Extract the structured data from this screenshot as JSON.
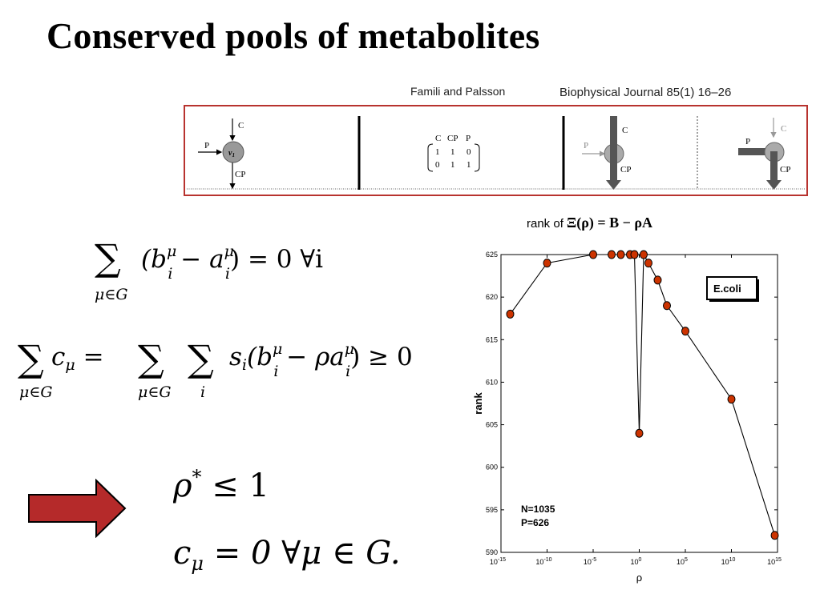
{
  "slide": {
    "title": "Conserved pools of metabolites",
    "citation": {
      "authors": "Famili and Palsson",
      "journal": "Biophysical Journal 85(1) 16–26"
    }
  },
  "figure_strip": {
    "panel1": {
      "c": "C",
      "p": "P",
      "cp": "CP",
      "node": "v",
      "node_sub": "1"
    },
    "panel2": {
      "headers": [
        "C",
        "CP",
        "P"
      ],
      "rows": [
        [
          "1",
          "1",
          "0"
        ],
        [
          "0",
          "1",
          "1"
        ]
      ]
    },
    "panel3": {
      "c": "C",
      "p": "P",
      "cp": "CP"
    },
    "panel4": {
      "c": "C",
      "p": "P",
      "cp": "CP"
    }
  },
  "equations": {
    "eq1": {
      "sum": "∑",
      "sub": "μ∈G",
      "body": "(b",
      "b_sup": "μ",
      "b_sub": "i",
      "minus": " − a",
      "a_sup": "μ",
      "a_sub": "i",
      "tail": ") = 0   ∀i"
    },
    "eq2": {
      "lhs_sum": "∑",
      "lhs_sub": "μ∈G",
      "lhs": "c",
      "lhs_idx": "μ",
      "eq": " = ",
      "sum2": "∑",
      "sum2_sub": "μ∈G",
      "sum3": "∑",
      "sum3_sub": "i",
      "body": "s",
      "body_sub": "i",
      "open": "(b",
      "b_sup": "μ",
      "b_sub": "i",
      "mid": " − ρa",
      "a_sup": "μ",
      "a_sub": "i",
      "tail": ") ≥ 0"
    },
    "eq3": {
      "lhs": "ρ",
      "sup": "*",
      "rhs": " ≤ 1"
    },
    "eq4": {
      "lhs": "c",
      "sub": "μ",
      "rhs": " = 0   ∀μ ∈ G."
    }
  },
  "arrow_color": "#b52a2a",
  "chart_title": {
    "prefix": "rank of ",
    "math": "Ξ(ρ) = B − ρA"
  },
  "chart_data": {
    "type": "scatter",
    "xlabel": "ρ",
    "ylabel": "rank",
    "x_scale": "log",
    "xlim": [
      1e-15,
      1000000000000000.0
    ],
    "ylim": [
      590,
      625
    ],
    "xticks": [
      "10",
      "10",
      "10",
      "10",
      "10",
      "10",
      "10"
    ],
    "xtick_exponents": [
      "-15",
      "-10",
      "-5",
      "0",
      "5",
      "10",
      "15"
    ],
    "yticks": [
      "590",
      "595",
      "600",
      "605",
      "610",
      "615",
      "620",
      "625"
    ],
    "legend": "E.coli",
    "annotations": [
      "N=1035",
      "P=626"
    ],
    "series": [
      {
        "x": [
          1e-14,
          1e-10,
          1e-05,
          0.001,
          0.01,
          0.1,
          0.3,
          1,
          3,
          10,
          100,
          1000,
          100000,
          10000000000.0,
          500000000000000.0
        ],
        "y": [
          618,
          624,
          625,
          625,
          625,
          625,
          625,
          604,
          625,
          624,
          622,
          619,
          616,
          608,
          592
        ]
      }
    ],
    "marker_color": "#cc3300",
    "line_color": "#000000"
  }
}
